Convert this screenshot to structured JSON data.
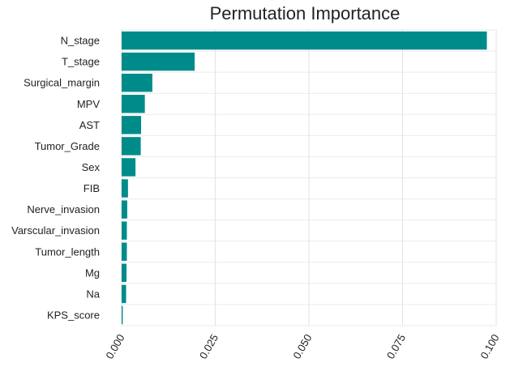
{
  "chart_data": {
    "type": "bar",
    "orientation": "horizontal",
    "title": "Permutation Importance",
    "xlabel": "",
    "ylabel": "",
    "categories": [
      "N_stage",
      "T_stage",
      "Surgical_margin",
      "MPV",
      "AST",
      "Tumor_Grade",
      "Sex",
      "FIB",
      "Nerve_invasion",
      "Varscular_invasion",
      "Tumor_length",
      "Mg",
      "Na",
      "KPS_score"
    ],
    "values": [
      0.0975,
      0.0195,
      0.0082,
      0.0062,
      0.0052,
      0.0051,
      0.0037,
      0.0017,
      0.0015,
      0.0014,
      0.0014,
      0.0013,
      0.0012,
      0.0003
    ],
    "xlim": [
      0,
      0.1
    ],
    "xticks": [
      "0.000",
      "0.025",
      "0.050",
      "0.075",
      "0.100"
    ],
    "grid": true,
    "bar_color": "#008B8B"
  }
}
